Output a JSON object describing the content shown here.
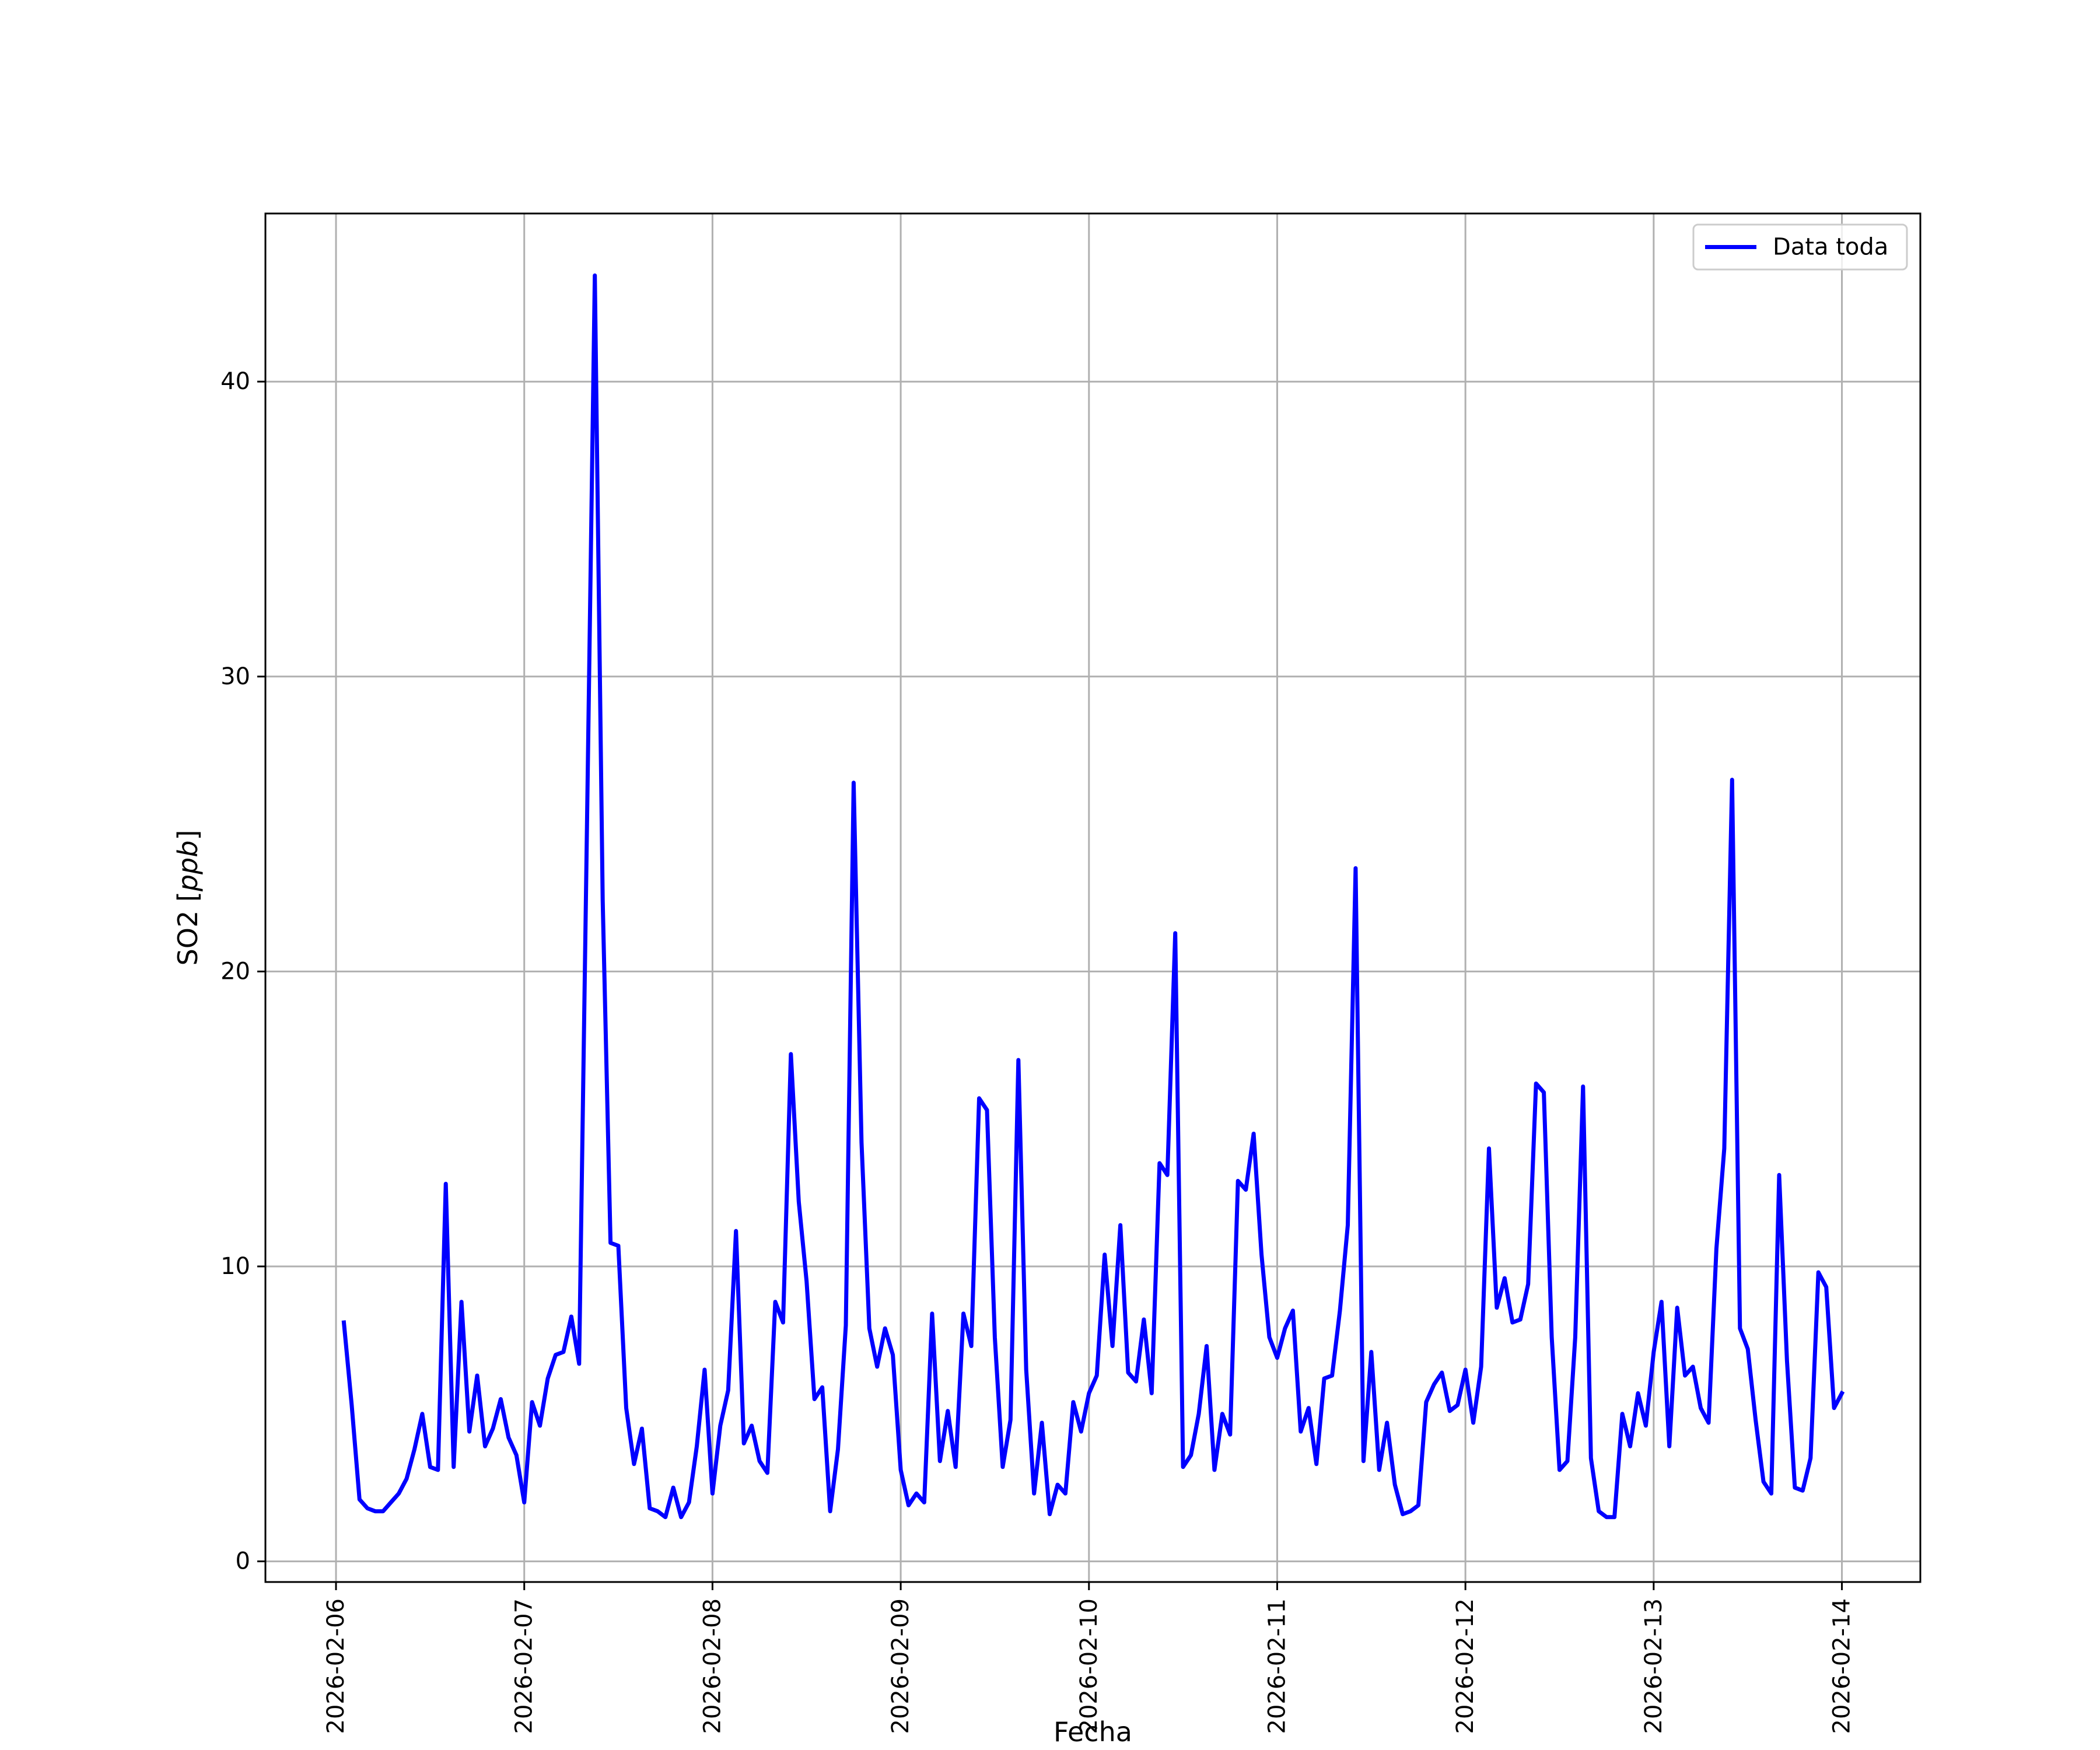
{
  "chart_data": {
    "type": "line",
    "xlabel": "Fecha",
    "ylabel": "SO2",
    "ylabel_unit": "ppb",
    "x_ticks": [
      "2026-02-06",
      "2026-02-07",
      "2026-02-08",
      "2026-02-09",
      "2026-02-10",
      "2026-02-11",
      "2026-02-12",
      "2026-02-13",
      "2026-02-14"
    ],
    "y_ticks": [
      "0",
      "10",
      "20",
      "30",
      "40"
    ],
    "xlim": [
      "2026-02-05 15:00",
      "2026-02-14 10:00"
    ],
    "ylim": [
      -0.7,
      45.7
    ],
    "grid": true,
    "legend": "top-right",
    "colors": {
      "line": "#0000ff",
      "grid": "#b0b0b0"
    },
    "series": [
      {
        "name": "Data toda",
        "points": [
          [
            "2026-02-06 01:00",
            8.1
          ],
          [
            "2026-02-06 02:00",
            5.3
          ],
          [
            "2026-02-06 03:00",
            2.1
          ],
          [
            "2026-02-06 04:00",
            1.8
          ],
          [
            "2026-02-06 05:00",
            1.7
          ],
          [
            "2026-02-06 06:00",
            1.7
          ],
          [
            "2026-02-06 07:00",
            2.0
          ],
          [
            "2026-02-06 08:00",
            2.3
          ],
          [
            "2026-02-06 09:00",
            2.8
          ],
          [
            "2026-02-06 10:00",
            3.8
          ],
          [
            "2026-02-06 11:00",
            5.0
          ],
          [
            "2026-02-06 12:00",
            3.2
          ],
          [
            "2026-02-06 13:00",
            3.1
          ],
          [
            "2026-02-06 14:00",
            12.8
          ],
          [
            "2026-02-06 15:00",
            3.2
          ],
          [
            "2026-02-06 16:00",
            8.8
          ],
          [
            "2026-02-06 17:00",
            4.4
          ],
          [
            "2026-02-06 18:00",
            6.3
          ],
          [
            "2026-02-06 19:00",
            3.9
          ],
          [
            "2026-02-06 20:00",
            4.5
          ],
          [
            "2026-02-06 21:00",
            5.5
          ],
          [
            "2026-02-06 22:00",
            4.2
          ],
          [
            "2026-02-06 23:00",
            3.6
          ],
          [
            "2026-02-07 00:00",
            2.0
          ],
          [
            "2026-02-07 01:00",
            5.4
          ],
          [
            "2026-02-07 02:00",
            4.6
          ],
          [
            "2026-02-07 03:00",
            6.2
          ],
          [
            "2026-02-07 04:00",
            7.0
          ],
          [
            "2026-02-07 05:00",
            7.1
          ],
          [
            "2026-02-07 06:00",
            8.3
          ],
          [
            "2026-02-07 07:00",
            6.7
          ],
          [
            "2026-02-07 08:00",
            25.0
          ],
          [
            "2026-02-07 09:00",
            43.6
          ],
          [
            "2026-02-07 10:00",
            22.4
          ],
          [
            "2026-02-07 11:00",
            10.8
          ],
          [
            "2026-02-07 12:00",
            10.7
          ],
          [
            "2026-02-07 13:00",
            5.2
          ],
          [
            "2026-02-07 14:00",
            3.3
          ],
          [
            "2026-02-07 15:00",
            4.5
          ],
          [
            "2026-02-07 16:00",
            1.8
          ],
          [
            "2026-02-07 17:00",
            1.7
          ],
          [
            "2026-02-07 18:00",
            1.5
          ],
          [
            "2026-02-07 19:00",
            2.5
          ],
          [
            "2026-02-07 20:00",
            1.5
          ],
          [
            "2026-02-07 21:00",
            2.0
          ],
          [
            "2026-02-07 22:00",
            3.9
          ],
          [
            "2026-02-07 23:00",
            6.5
          ],
          [
            "2026-02-08 00:00",
            2.3
          ],
          [
            "2026-02-08 01:00",
            4.6
          ],
          [
            "2026-02-08 02:00",
            5.8
          ],
          [
            "2026-02-08 03:00",
            11.2
          ],
          [
            "2026-02-08 04:00",
            4.0
          ],
          [
            "2026-02-08 05:00",
            4.6
          ],
          [
            "2026-02-08 06:00",
            3.4
          ],
          [
            "2026-02-08 07:00",
            3.0
          ],
          [
            "2026-02-08 08:00",
            8.8
          ],
          [
            "2026-02-08 09:00",
            8.1
          ],
          [
            "2026-02-08 10:00",
            17.2
          ],
          [
            "2026-02-08 11:00",
            12.2
          ],
          [
            "2026-02-08 12:00",
            9.5
          ],
          [
            "2026-02-08 13:00",
            5.5
          ],
          [
            "2026-02-08 14:00",
            5.9
          ],
          [
            "2026-02-08 15:00",
            1.7
          ],
          [
            "2026-02-08 16:00",
            3.8
          ],
          [
            "2026-02-08 17:00",
            8.0
          ],
          [
            "2026-02-08 18:00",
            26.4
          ],
          [
            "2026-02-08 19:00",
            14.2
          ],
          [
            "2026-02-08 20:00",
            7.9
          ],
          [
            "2026-02-08 21:00",
            6.6
          ],
          [
            "2026-02-08 22:00",
            7.9
          ],
          [
            "2026-02-08 23:00",
            7.0
          ],
          [
            "2026-02-09 00:00",
            3.1
          ],
          [
            "2026-02-09 01:00",
            1.9
          ],
          [
            "2026-02-09 02:00",
            2.3
          ],
          [
            "2026-02-09 03:00",
            2.0
          ],
          [
            "2026-02-09 04:00",
            8.4
          ],
          [
            "2026-02-09 05:00",
            3.4
          ],
          [
            "2026-02-09 06:00",
            5.1
          ],
          [
            "2026-02-09 07:00",
            3.2
          ],
          [
            "2026-02-09 08:00",
            8.4
          ],
          [
            "2026-02-09 09:00",
            7.3
          ],
          [
            "2026-02-09 10:00",
            15.7
          ],
          [
            "2026-02-09 11:00",
            15.3
          ],
          [
            "2026-02-09 12:00",
            7.6
          ],
          [
            "2026-02-09 13:00",
            3.2
          ],
          [
            "2026-02-09 14:00",
            4.8
          ],
          [
            "2026-02-09 15:00",
            17.0
          ],
          [
            "2026-02-09 16:00",
            6.5
          ],
          [
            "2026-02-09 17:00",
            2.3
          ],
          [
            "2026-02-09 18:00",
            4.7
          ],
          [
            "2026-02-09 19:00",
            1.6
          ],
          [
            "2026-02-09 20:00",
            2.6
          ],
          [
            "2026-02-09 21:00",
            2.3
          ],
          [
            "2026-02-09 22:00",
            5.4
          ],
          [
            "2026-02-09 23:00",
            4.4
          ],
          [
            "2026-02-10 00:00",
            5.7
          ],
          [
            "2026-02-10 01:00",
            6.3
          ],
          [
            "2026-02-10 02:00",
            10.4
          ],
          [
            "2026-02-10 03:00",
            7.3
          ],
          [
            "2026-02-10 04:00",
            11.4
          ],
          [
            "2026-02-10 05:00",
            6.4
          ],
          [
            "2026-02-10 06:00",
            6.1
          ],
          [
            "2026-02-10 07:00",
            8.2
          ],
          [
            "2026-02-10 08:00",
            5.7
          ],
          [
            "2026-02-10 09:00",
            13.5
          ],
          [
            "2026-02-10 10:00",
            13.1
          ],
          [
            "2026-02-10 11:00",
            21.3
          ],
          [
            "2026-02-10 12:00",
            3.2
          ],
          [
            "2026-02-10 13:00",
            3.6
          ],
          [
            "2026-02-10 14:00",
            5.0
          ],
          [
            "2026-02-10 15:00",
            7.3
          ],
          [
            "2026-02-10 16:00",
            3.1
          ],
          [
            "2026-02-10 17:00",
            5.0
          ],
          [
            "2026-02-10 18:00",
            4.3
          ],
          [
            "2026-02-10 19:00",
            12.9
          ],
          [
            "2026-02-10 20:00",
            12.6
          ],
          [
            "2026-02-10 21:00",
            14.5
          ],
          [
            "2026-02-10 22:00",
            10.4
          ],
          [
            "2026-02-10 23:00",
            7.6
          ],
          [
            "2026-02-11 00:00",
            6.9
          ],
          [
            "2026-02-11 01:00",
            7.9
          ],
          [
            "2026-02-11 02:00",
            8.5
          ],
          [
            "2026-02-11 03:00",
            4.4
          ],
          [
            "2026-02-11 04:00",
            5.2
          ],
          [
            "2026-02-11 05:00",
            3.3
          ],
          [
            "2026-02-11 06:00",
            6.2
          ],
          [
            "2026-02-11 07:00",
            6.3
          ],
          [
            "2026-02-11 08:00",
            8.5
          ],
          [
            "2026-02-11 09:00",
            11.4
          ],
          [
            "2026-02-11 10:00",
            23.5
          ],
          [
            "2026-02-11 11:00",
            3.4
          ],
          [
            "2026-02-11 12:00",
            7.1
          ],
          [
            "2026-02-11 13:00",
            3.1
          ],
          [
            "2026-02-11 14:00",
            4.7
          ],
          [
            "2026-02-11 15:00",
            2.6
          ],
          [
            "2026-02-11 16:00",
            1.6
          ],
          [
            "2026-02-11 17:00",
            1.7
          ],
          [
            "2026-02-11 18:00",
            1.9
          ],
          [
            "2026-02-11 19:00",
            5.4
          ],
          [
            "2026-02-11 20:00",
            6.0
          ],
          [
            "2026-02-11 21:00",
            6.4
          ],
          [
            "2026-02-11 22:00",
            5.1
          ],
          [
            "2026-02-11 23:00",
            5.3
          ],
          [
            "2026-02-12 00:00",
            6.5
          ],
          [
            "2026-02-12 01:00",
            4.7
          ],
          [
            "2026-02-12 02:00",
            6.6
          ],
          [
            "2026-02-12 03:00",
            14.0
          ],
          [
            "2026-02-12 04:00",
            8.6
          ],
          [
            "2026-02-12 05:00",
            9.6
          ],
          [
            "2026-02-12 06:00",
            8.1
          ],
          [
            "2026-02-12 07:00",
            8.2
          ],
          [
            "2026-02-12 08:00",
            9.4
          ],
          [
            "2026-02-12 09:00",
            16.2
          ],
          [
            "2026-02-12 10:00",
            15.9
          ],
          [
            "2026-02-12 11:00",
            7.6
          ],
          [
            "2026-02-12 12:00",
            3.1
          ],
          [
            "2026-02-12 13:00",
            3.4
          ],
          [
            "2026-02-12 14:00",
            7.6
          ],
          [
            "2026-02-12 15:00",
            16.1
          ],
          [
            "2026-02-12 16:00",
            3.5
          ],
          [
            "2026-02-12 17:00",
            1.7
          ],
          [
            "2026-02-12 18:00",
            1.5
          ],
          [
            "2026-02-12 19:00",
            1.5
          ],
          [
            "2026-02-12 20:00",
            5.0
          ],
          [
            "2026-02-12 21:00",
            3.9
          ],
          [
            "2026-02-12 22:00",
            5.7
          ],
          [
            "2026-02-12 23:00",
            4.6
          ],
          [
            "2026-02-13 00:00",
            7.1
          ],
          [
            "2026-02-13 01:00",
            8.8
          ],
          [
            "2026-02-13 02:00",
            3.9
          ],
          [
            "2026-02-13 03:00",
            8.6
          ],
          [
            "2026-02-13 04:00",
            6.3
          ],
          [
            "2026-02-13 05:00",
            6.6
          ],
          [
            "2026-02-13 06:00",
            5.2
          ],
          [
            "2026-02-13 07:00",
            4.7
          ],
          [
            "2026-02-13 08:00",
            10.6
          ],
          [
            "2026-02-13 09:00",
            14.0
          ],
          [
            "2026-02-13 10:00",
            26.5
          ],
          [
            "2026-02-13 11:00",
            7.9
          ],
          [
            "2026-02-13 12:00",
            7.2
          ],
          [
            "2026-02-13 13:00",
            4.8
          ],
          [
            "2026-02-13 14:00",
            2.7
          ],
          [
            "2026-02-13 15:00",
            2.3
          ],
          [
            "2026-02-13 16:00",
            13.1
          ],
          [
            "2026-02-13 17:00",
            6.8
          ],
          [
            "2026-02-13 18:00",
            2.5
          ],
          [
            "2026-02-13 19:00",
            2.4
          ],
          [
            "2026-02-13 20:00",
            3.5
          ],
          [
            "2026-02-13 21:00",
            9.8
          ],
          [
            "2026-02-13 22:00",
            9.3
          ],
          [
            "2026-02-13 23:00",
            5.2
          ],
          [
            "2026-02-14 00:00",
            5.7
          ]
        ]
      }
    ]
  }
}
